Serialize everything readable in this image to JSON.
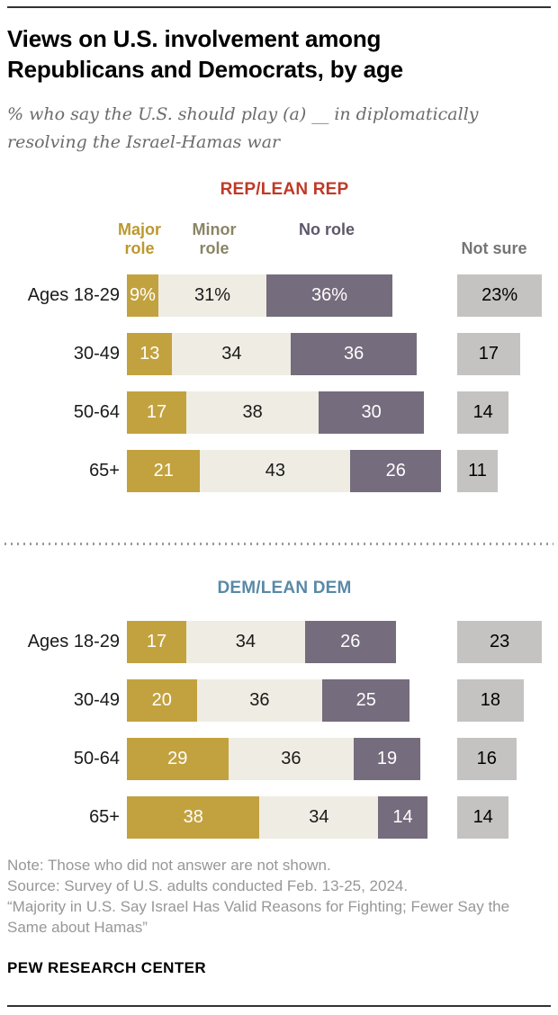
{
  "page": {
    "title": "Views on U.S. involvement among Republicans and Democrats, by age",
    "subtitle": "% who say the U.S. should play (a) __ in diplomatically resolving the Israel-Hamas war"
  },
  "legend": {
    "major": "Major role",
    "minor": "Minor role",
    "no": "No role",
    "notsure": "Not sure"
  },
  "colors": {
    "major_bar": "#C2A23F",
    "minor_bar": "#EFECE3",
    "no_role_bar": "#756C7D",
    "not_sure_bar": "#C4C3C1",
    "rep_header": "#BF3927",
    "dem_header": "#5989A6",
    "legend_major_text": "#BC982F",
    "legend_minor_text": "#8A8566",
    "legend_no_text": "#5E5769",
    "legend_not_sure_text": "#757575"
  },
  "chart_data": {
    "type": "bar",
    "orientation": "horizontal-stacked",
    "title": "Views on U.S. involvement among Republicans and Democrats, by age",
    "subtitle": "% who say the U.S. should play (a) __ in diplomatically resolving the Israel-Hamas war",
    "unit": "percent",
    "xlim": [
      0,
      100
    ],
    "sections": [
      {
        "group": "REP/LEAN REP",
        "categories": [
          "Ages 18-29",
          "30-49",
          "50-64",
          "65+"
        ],
        "series": [
          {
            "name": "Major role",
            "values": [
              9,
              13,
              17,
              21
            ]
          },
          {
            "name": "Minor role",
            "values": [
              31,
              34,
              38,
              43
            ]
          },
          {
            "name": "No role",
            "values": [
              36,
              36,
              30,
              26
            ]
          },
          {
            "name": "Not sure",
            "values": [
              23,
              17,
              14,
              11
            ]
          }
        ]
      },
      {
        "group": "DEM/LEAN DEM",
        "categories": [
          "Ages 18-29",
          "30-49",
          "50-64",
          "65+"
        ],
        "series": [
          {
            "name": "Major role",
            "values": [
              17,
              20,
              29,
              38
            ]
          },
          {
            "name": "Minor role",
            "values": [
              34,
              36,
              36,
              34
            ]
          },
          {
            "name": "No role",
            "values": [
              26,
              25,
              19,
              14
            ]
          },
          {
            "name": "Not sure",
            "values": [
              23,
              18,
              16,
              14
            ]
          }
        ]
      }
    ]
  },
  "display": {
    "sections": [
      {
        "rows": [
          {
            "major": "9%",
            "minor": "31%",
            "no": "36%",
            "notsure": "23%"
          },
          {
            "major": "13",
            "minor": "34",
            "no": "36",
            "notsure": "17"
          },
          {
            "major": "17",
            "minor": "38",
            "no": "30",
            "notsure": "14"
          },
          {
            "major": "21",
            "minor": "43",
            "no": "26",
            "notsure": "11"
          }
        ]
      },
      {
        "rows": [
          {
            "major": "17",
            "minor": "34",
            "no": "26",
            "notsure": "23"
          },
          {
            "major": "20",
            "minor": "36",
            "no": "25",
            "notsure": "18"
          },
          {
            "major": "29",
            "minor": "36",
            "no": "19",
            "notsure": "16"
          },
          {
            "major": "38",
            "minor": "34",
            "no": "14",
            "notsure": "14"
          }
        ]
      }
    ]
  },
  "notes": {
    "note": "Note: Those who did not answer are not shown.",
    "source": "Source: Survey of U.S. adults conducted Feb. 13-25, 2024.",
    "quote": "“Majority in U.S. Say Israel Has Valid Reasons for Fighting; Fewer Say the Same about Hamas”"
  },
  "footer": {
    "brand": "PEW RESEARCH CENTER"
  }
}
